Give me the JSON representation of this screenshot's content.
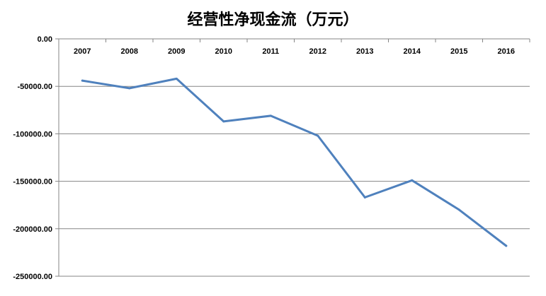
{
  "chart_data": {
    "type": "line",
    "title": "经营性净现金流（万元）",
    "categories": [
      "2007",
      "2008",
      "2009",
      "2010",
      "2011",
      "2012",
      "2013",
      "2014",
      "2015",
      "2016"
    ],
    "series": [
      {
        "values": [
          -44000,
          -52000,
          -42000,
          -87000,
          -81000,
          -102000,
          -167000,
          -149000,
          -180000,
          -218000
        ]
      }
    ],
    "ylim": [
      -250000,
      0
    ],
    "yticks": [
      0,
      -50000,
      -100000,
      -150000,
      -200000,
      -250000
    ],
    "ytick_labels": [
      "0.00",
      "-50000.00",
      "-100000.00",
      "-150000.00",
      "-200000.00",
      "-250000.00"
    ],
    "grid": true,
    "xaxis_position": "top",
    "colors": {
      "line": "#4f81bd",
      "grid": "#868686",
      "axis": "#868686"
    }
  }
}
